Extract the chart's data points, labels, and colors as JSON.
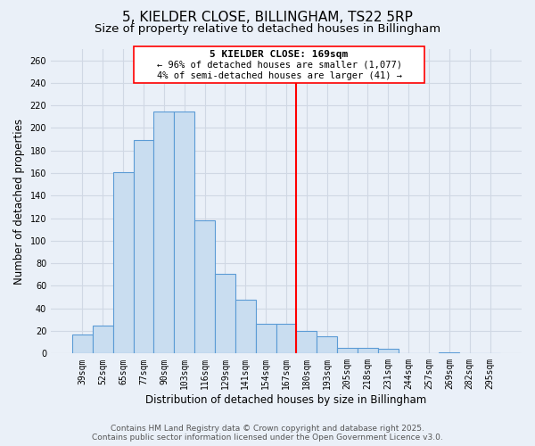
{
  "title": "5, KIELDER CLOSE, BILLINGHAM, TS22 5RP",
  "subtitle": "Size of property relative to detached houses in Billingham",
  "xlabel": "Distribution of detached houses by size in Billingham",
  "ylabel": "Number of detached properties",
  "bar_labels": [
    "39sqm",
    "52sqm",
    "65sqm",
    "77sqm",
    "90sqm",
    "103sqm",
    "116sqm",
    "129sqm",
    "141sqm",
    "154sqm",
    "167sqm",
    "180sqm",
    "193sqm",
    "205sqm",
    "218sqm",
    "231sqm",
    "244sqm",
    "257sqm",
    "269sqm",
    "282sqm",
    "295sqm"
  ],
  "bar_values": [
    17,
    25,
    161,
    189,
    215,
    215,
    118,
    71,
    48,
    26,
    26,
    20,
    15,
    5,
    5,
    4,
    0,
    0,
    1,
    0,
    0
  ],
  "bar_color": "#c9ddf0",
  "bar_edge_color": "#5b9bd5",
  "grid_color": "#d0d8e4",
  "background_color": "#eaf0f8",
  "vline_x_index": 10,
  "vline_color": "red",
  "annotation_title": "5 KIELDER CLOSE: 169sqm",
  "annotation_line1": "← 96% of detached houses are smaller (1,077)",
  "annotation_line2": "4% of semi-detached houses are larger (41) →",
  "annotation_box_color": "white",
  "annotation_box_edge": "red",
  "ylim": [
    0,
    270
  ],
  "yticks": [
    0,
    20,
    40,
    60,
    80,
    100,
    120,
    140,
    160,
    180,
    200,
    220,
    240,
    260
  ],
  "footer1": "Contains HM Land Registry data © Crown copyright and database right 2025.",
  "footer2": "Contains public sector information licensed under the Open Government Licence v3.0.",
  "title_fontsize": 11,
  "subtitle_fontsize": 9.5,
  "ylabel_fontsize": 8.5,
  "xlabel_fontsize": 8.5,
  "tick_fontsize": 7,
  "annotation_title_fontsize": 8,
  "annotation_body_fontsize": 7.5,
  "footer_fontsize": 6.5
}
